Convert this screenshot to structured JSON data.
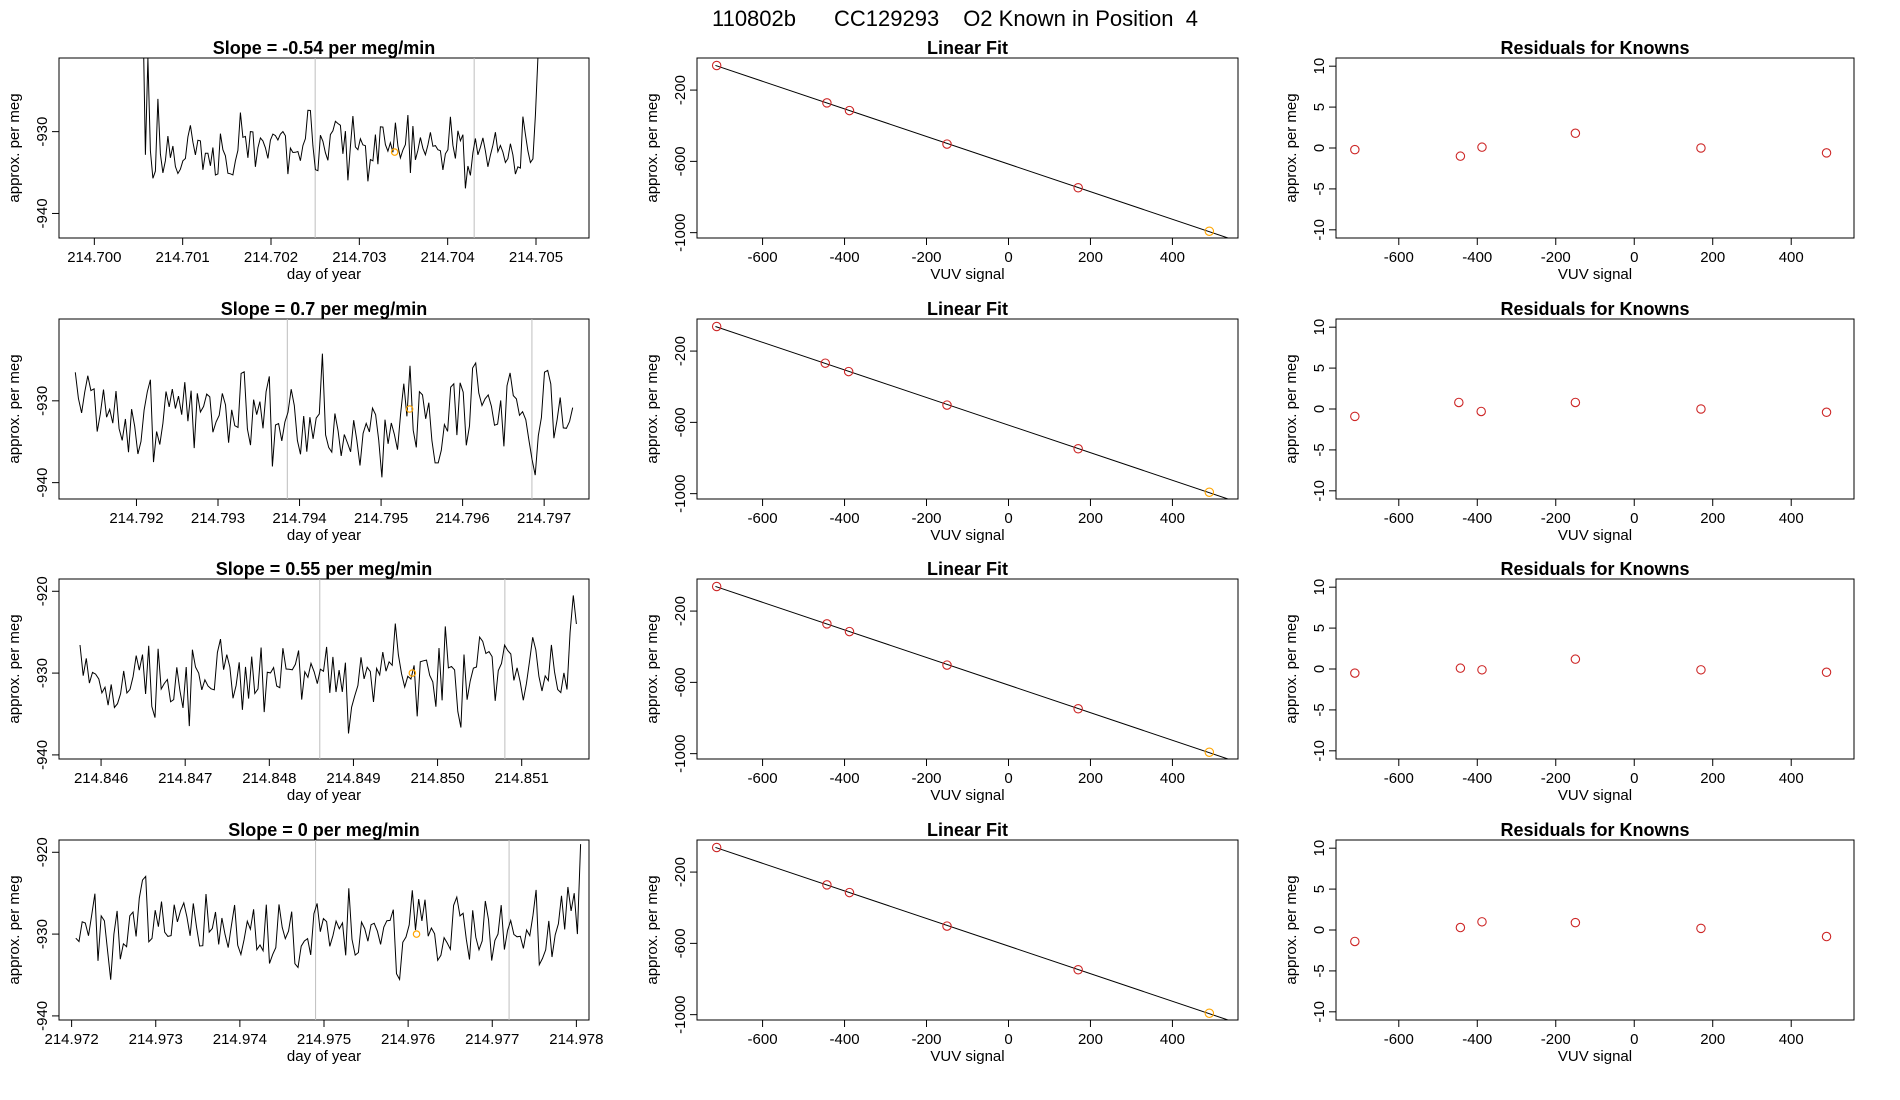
{
  "figure": {
    "title_id": "110802b",
    "title_cylinder": "CC129293",
    "title_desc": "O2 Known in Position  4",
    "colors": {
      "line": "#000000",
      "point": "#cd2626",
      "highlight": "#ffa500",
      "vline": "#bebebe"
    }
  },
  "chart_data": [
    {
      "type": "line",
      "row": 0,
      "col": 0,
      "title": "Slope =  -0.54  per meg/min",
      "xlabel": "day of year",
      "ylabel": "approx. per meg",
      "xlim": [
        214.6996,
        214.7056
      ],
      "ylim": [
        -943,
        -921
      ],
      "xticks": [
        214.7,
        214.701,
        214.702,
        214.703,
        214.704,
        214.705
      ],
      "xtick_labels": [
        "214.700",
        "214.701",
        "214.702",
        "214.703",
        "214.704",
        "214.705"
      ],
      "yticks": [
        -940,
        -930
      ],
      "ytick_labels": [
        "-940",
        "-930"
      ],
      "x_start": 214.70055,
      "x_end": 214.70505,
      "seed": 17,
      "mean": -932.5,
      "sd": 1.8,
      "ramp_start": [
        {
          "i": 0,
          "v": -915
        },
        {
          "i": 2,
          "v": -921
        },
        {
          "i": 6,
          "v": -926
        }
      ],
      "ramp_end": [
        {
          "i": -3,
          "v": -928
        },
        {
          "i": -2,
          "v": -921
        },
        {
          "i": -1,
          "v": -914
        }
      ],
      "vlines": [
        214.7025,
        214.7043
      ],
      "highlight": {
        "x": 214.7034,
        "y": -932.5
      }
    },
    {
      "type": "scatter_fit",
      "row": 0,
      "col": 1,
      "title": "Linear Fit",
      "xlabel": "VUV signal",
      "ylabel": "approx. per meg",
      "xlim": [
        -760,
        560
      ],
      "ylim": [
        -1030,
        -20
      ],
      "xticks": [
        -600,
        -400,
        -200,
        0,
        200,
        400
      ],
      "xtick_labels": [
        "-600",
        "-400",
        "-200",
        "0",
        "200",
        "400"
      ],
      "yticks": [
        -1000,
        -600,
        -200
      ],
      "ytick_labels": [
        "-1000",
        "-600",
        "-200"
      ],
      "fit": {
        "x0": -715,
        "x1": 545
      },
      "points": [
        {
          "x": -712,
          "y": -62
        },
        {
          "x": -443,
          "y": -272
        },
        {
          "x": -388,
          "y": -315
        },
        {
          "x": -150,
          "y": -503
        },
        {
          "x": 170,
          "y": -748
        },
        {
          "x": 490,
          "y": -992
        }
      ],
      "highlight_index": 5
    },
    {
      "type": "scatter",
      "row": 0,
      "col": 2,
      "title": "Residuals for Knowns",
      "xlabel": "VUV signal",
      "ylabel": "approx. per meg",
      "xlim": [
        -760,
        560
      ],
      "ylim": [
        -11,
        11
      ],
      "xticks": [
        -600,
        -400,
        -200,
        0,
        200,
        400
      ],
      "xtick_labels": [
        "-600",
        "-400",
        "-200",
        "0",
        "200",
        "400"
      ],
      "yticks": [
        -10,
        -5,
        0,
        5,
        10
      ],
      "ytick_labels": [
        "-10",
        "-5",
        "0",
        "5",
        "10"
      ],
      "points": [
        {
          "x": -712,
          "y": -0.2
        },
        {
          "x": -443,
          "y": -1.0
        },
        {
          "x": -388,
          "y": 0.1
        },
        {
          "x": -150,
          "y": 1.8
        },
        {
          "x": 170,
          "y": 0.0
        },
        {
          "x": 490,
          "y": -0.6
        }
      ]
    },
    {
      "type": "line",
      "row": 1,
      "col": 0,
      "title": "Slope =  0.7  per meg/min",
      "xlabel": "day of year",
      "ylabel": "approx. per meg",
      "xlim": [
        214.79105,
        214.79755
      ],
      "ylim": [
        -942,
        -920
      ],
      "xticks": [
        214.792,
        214.793,
        214.794,
        214.795,
        214.796,
        214.797
      ],
      "xtick_labels": [
        "214.792",
        "214.793",
        "214.794",
        "214.795",
        "214.796",
        "214.797"
      ],
      "yticks": [
        -940,
        -930
      ],
      "ytick_labels": [
        "-940",
        "-930"
      ],
      "x_start": 214.79125,
      "x_end": 214.79735,
      "seed": 41,
      "mean": -931.5,
      "sd": 3.0,
      "ramp_start": [],
      "ramp_end": [],
      "vlines": [
        214.79385,
        214.79685
      ],
      "highlight": {
        "x": 214.79535,
        "y": -931.0
      }
    },
    {
      "type": "scatter_fit",
      "row": 1,
      "col": 1,
      "title": "Linear Fit",
      "xlabel": "VUV signal",
      "ylabel": "approx. per meg",
      "xlim": [
        -760,
        560
      ],
      "ylim": [
        -1030,
        -20
      ],
      "xticks": [
        -600,
        -400,
        -200,
        0,
        200,
        400
      ],
      "xtick_labels": [
        "-600",
        "-400",
        "-200",
        "0",
        "200",
        "400"
      ],
      "yticks": [
        -1000,
        -600,
        -200
      ],
      "ytick_labels": [
        "-1000",
        "-600",
        "-200"
      ],
      "fit": {
        "x0": -715,
        "x1": 545
      },
      "points": [
        {
          "x": -712,
          "y": -62
        },
        {
          "x": -447,
          "y": -268
        },
        {
          "x": -390,
          "y": -315
        },
        {
          "x": -150,
          "y": -503
        },
        {
          "x": 170,
          "y": -748
        },
        {
          "x": 490,
          "y": -992
        }
      ],
      "highlight_index": 5
    },
    {
      "type": "scatter",
      "row": 1,
      "col": 2,
      "title": "Residuals for Knowns",
      "xlabel": "VUV signal",
      "ylabel": "approx. per meg",
      "xlim": [
        -760,
        560
      ],
      "ylim": [
        -11,
        11
      ],
      "xticks": [
        -600,
        -400,
        -200,
        0,
        200,
        400
      ],
      "xtick_labels": [
        "-600",
        "-400",
        "-200",
        "0",
        "200",
        "400"
      ],
      "yticks": [
        -10,
        -5,
        0,
        5,
        10
      ],
      "ytick_labels": [
        "-10",
        "-5",
        "0",
        "5",
        "10"
      ],
      "points": [
        {
          "x": -712,
          "y": -0.9
        },
        {
          "x": -447,
          "y": 0.8
        },
        {
          "x": -390,
          "y": -0.3
        },
        {
          "x": -150,
          "y": 0.8
        },
        {
          "x": 170,
          "y": 0.0
        },
        {
          "x": 490,
          "y": -0.4
        }
      ]
    },
    {
      "type": "line",
      "row": 2,
      "col": 0,
      "title": "Slope =  0.55  per meg/min",
      "xlabel": "day of year",
      "ylabel": "approx. per meg",
      "xlim": [
        214.8455,
        214.8518
      ],
      "ylim": [
        -940.5,
        -918.5
      ],
      "xticks": [
        214.846,
        214.847,
        214.848,
        214.849,
        214.85,
        214.851
      ],
      "xtick_labels": [
        "214.846",
        "214.847",
        "214.848",
        "214.849",
        "214.850",
        "214.851"
      ],
      "yticks": [
        -940,
        -930,
        -920
      ],
      "ytick_labels": [
        "-940",
        "-930",
        "-920"
      ],
      "x_start": 214.84575,
      "x_end": 214.85165,
      "seed": 73,
      "mean": -930.0,
      "sd": 2.6,
      "ramp_start": [],
      "ramp_end": [
        {
          "i": -4,
          "v": -932
        },
        {
          "i": -3,
          "v": -925
        },
        {
          "i": -2,
          "v": -920.5
        },
        {
          "i": -1,
          "v": -924
        }
      ],
      "vlines": [
        214.8486,
        214.8508
      ],
      "highlight": {
        "x": 214.8497,
        "y": -930.0
      }
    },
    {
      "type": "scatter_fit",
      "row": 2,
      "col": 1,
      "title": "Linear Fit",
      "xlabel": "VUV signal",
      "ylabel": "approx. per meg",
      "xlim": [
        -760,
        560
      ],
      "ylim": [
        -1030,
        -20
      ],
      "xticks": [
        -600,
        -400,
        -200,
        0,
        200,
        400
      ],
      "xtick_labels": [
        "-600",
        "-400",
        "-200",
        "0",
        "200",
        "400"
      ],
      "yticks": [
        -1000,
        -600,
        -200
      ],
      "ytick_labels": [
        "-1000",
        "-600",
        "-200"
      ],
      "fit": {
        "x0": -715,
        "x1": 545
      },
      "points": [
        {
          "x": -712,
          "y": -62
        },
        {
          "x": -443,
          "y": -272
        },
        {
          "x": -388,
          "y": -315
        },
        {
          "x": -150,
          "y": -503
        },
        {
          "x": 170,
          "y": -748
        },
        {
          "x": 490,
          "y": -992
        }
      ],
      "highlight_index": 5
    },
    {
      "type": "scatter",
      "row": 2,
      "col": 2,
      "title": "Residuals for Knowns",
      "xlabel": "VUV signal",
      "ylabel": "approx. per meg",
      "xlim": [
        -760,
        560
      ],
      "ylim": [
        -11,
        11
      ],
      "xticks": [
        -600,
        -400,
        -200,
        0,
        200,
        400
      ],
      "xtick_labels": [
        "-600",
        "-400",
        "-200",
        "0",
        "200",
        "400"
      ],
      "yticks": [
        -10,
        -5,
        0,
        5,
        10
      ],
      "ytick_labels": [
        "-10",
        "-5",
        "0",
        "5",
        "10"
      ],
      "points": [
        {
          "x": -712,
          "y": -0.5
        },
        {
          "x": -443,
          "y": 0.1
        },
        {
          "x": -388,
          "y": -0.1
        },
        {
          "x": -150,
          "y": 1.2
        },
        {
          "x": 170,
          "y": -0.1
        },
        {
          "x": 490,
          "y": -0.4
        }
      ]
    },
    {
      "type": "line",
      "row": 3,
      "col": 0,
      "title": "Slope =  0  per meg/min",
      "xlabel": "day of year",
      "ylabel": "approx. per meg",
      "xlim": [
        214.97185,
        214.97815
      ],
      "ylim": [
        -940.5,
        -918.5
      ],
      "xticks": [
        214.972,
        214.973,
        214.974,
        214.975,
        214.976,
        214.977,
        214.978
      ],
      "xtick_labels": [
        "214.972",
        "214.973",
        "214.974",
        "214.975",
        "214.976",
        "214.977",
        "214.978"
      ],
      "yticks": [
        -940,
        -930,
        -920
      ],
      "ytick_labels": [
        "-940",
        "-930",
        "-920"
      ],
      "x_start": 214.97205,
      "x_end": 214.97805,
      "seed": 101,
      "mean": -929.5,
      "sd": 2.5,
      "ramp_start": [
        {
          "i": 0,
          "v": -930.5
        }
      ],
      "ramp_end": [
        {
          "i": -3,
          "v": -925
        },
        {
          "i": -2,
          "v": -930
        },
        {
          "i": -1,
          "v": -919
        }
      ],
      "vlines": [
        214.9749,
        214.9772
      ],
      "highlight": {
        "x": 214.9761,
        "y": -930.0
      }
    },
    {
      "type": "scatter_fit",
      "row": 3,
      "col": 1,
      "title": "Linear Fit",
      "xlabel": "VUV signal",
      "ylabel": "approx. per meg",
      "xlim": [
        -760,
        560
      ],
      "ylim": [
        -1030,
        -20
      ],
      "xticks": [
        -600,
        -400,
        -200,
        0,
        200,
        400
      ],
      "xtick_labels": [
        "-600",
        "-400",
        "-200",
        "0",
        "200",
        "400"
      ],
      "yticks": [
        -1000,
        -600,
        -200
      ],
      "ytick_labels": [
        "-1000",
        "-600",
        "-200"
      ],
      "fit": {
        "x0": -715,
        "x1": 545
      },
      "points": [
        {
          "x": -712,
          "y": -62
        },
        {
          "x": -443,
          "y": -272
        },
        {
          "x": -388,
          "y": -315
        },
        {
          "x": -150,
          "y": -503
        },
        {
          "x": 170,
          "y": -748
        },
        {
          "x": 490,
          "y": -992
        }
      ],
      "highlight_index": 5
    },
    {
      "type": "scatter",
      "row": 3,
      "col": 2,
      "title": "Residuals for Knowns",
      "xlabel": "VUV signal",
      "ylabel": "approx. per meg",
      "xlim": [
        -760,
        560
      ],
      "ylim": [
        -11,
        11
      ],
      "xticks": [
        -600,
        -400,
        -200,
        0,
        200,
        400
      ],
      "xtick_labels": [
        "-600",
        "-400",
        "-200",
        "0",
        "200",
        "400"
      ],
      "yticks": [
        -10,
        -5,
        0,
        5,
        10
      ],
      "ytick_labels": [
        "-10",
        "-5",
        "0",
        "5",
        "10"
      ],
      "points": [
        {
          "x": -712,
          "y": -1.4
        },
        {
          "x": -443,
          "y": 0.3
        },
        {
          "x": -388,
          "y": 1.0
        },
        {
          "x": -150,
          "y": 0.9
        },
        {
          "x": 170,
          "y": 0.2
        },
        {
          "x": 490,
          "y": -0.8
        }
      ]
    }
  ]
}
